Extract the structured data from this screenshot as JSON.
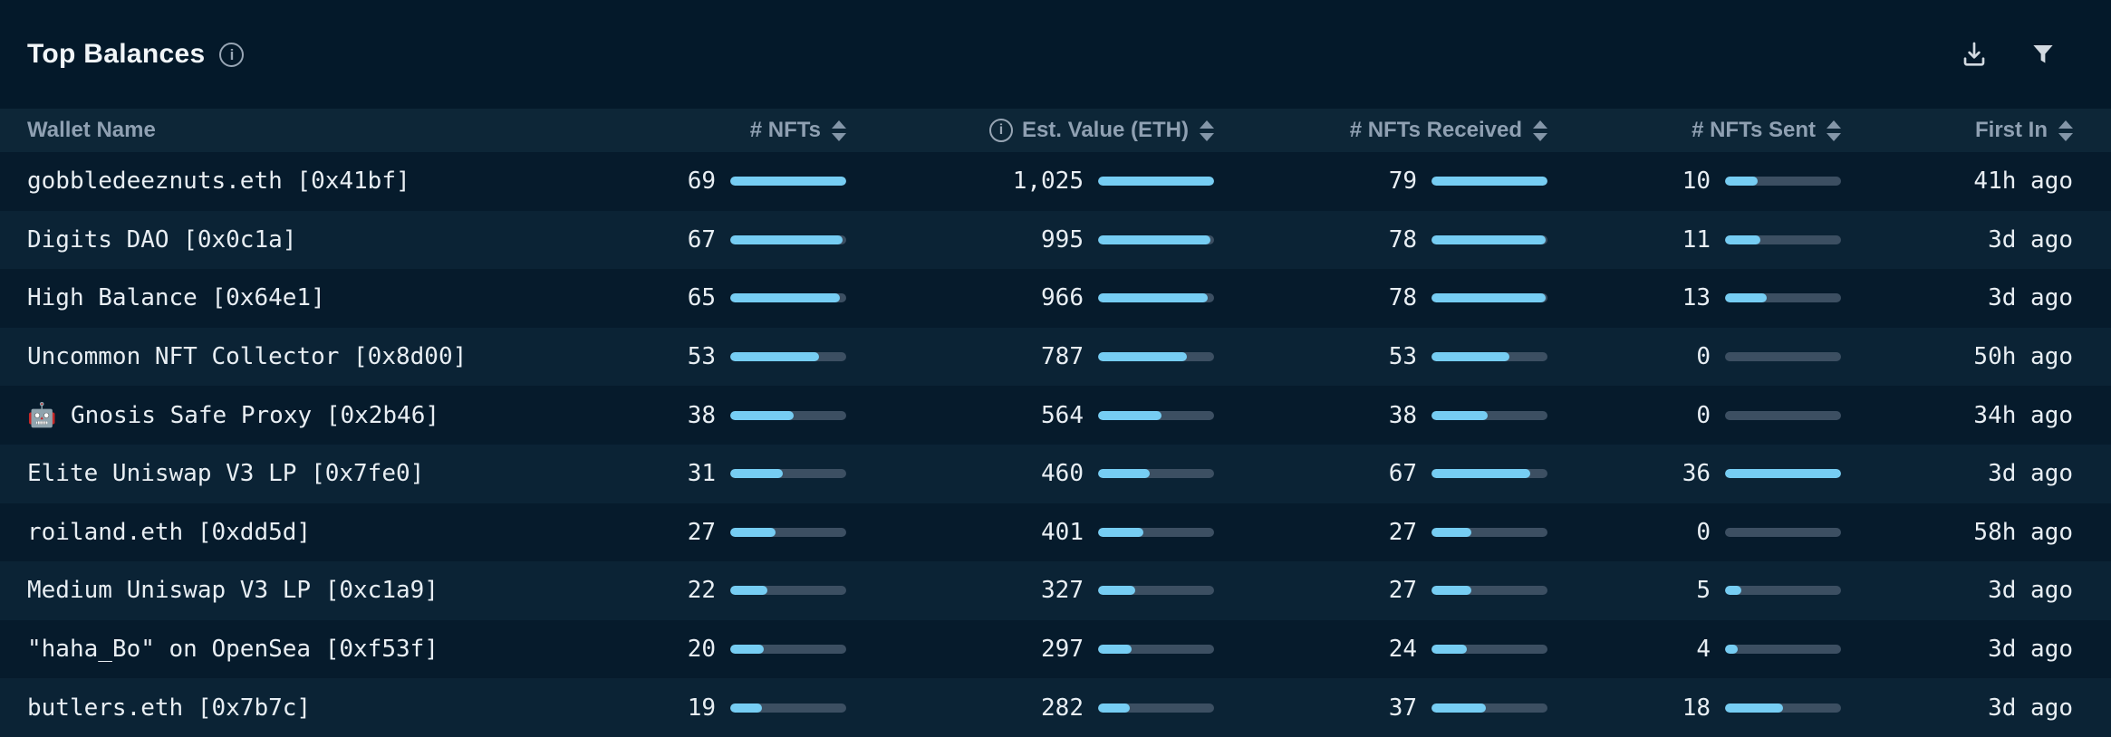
{
  "panel": {
    "title": "Top Balances"
  },
  "toolbar": {
    "icons": [
      {
        "name": "download-icon"
      },
      {
        "name": "filter-icon"
      }
    ]
  },
  "table": {
    "columns": [
      {
        "key": "name",
        "label": "Wallet Name",
        "sortable": false,
        "info_icon": false
      },
      {
        "key": "nfts",
        "label": "# NFTs",
        "sortable": true,
        "info_icon": false
      },
      {
        "key": "value",
        "label": "Est. Value (ETH)",
        "sortable": true,
        "info_icon": true
      },
      {
        "key": "received",
        "label": "# NFTs Received",
        "sortable": true,
        "info_icon": false
      },
      {
        "key": "sent",
        "label": "# NFTs Sent",
        "sortable": true,
        "info_icon": false
      },
      {
        "key": "first_in",
        "label": "First In",
        "sortable": true,
        "info_icon": false
      }
    ],
    "max": {
      "nfts": 69,
      "value": 1025,
      "received": 79,
      "sent": 36
    },
    "rows": [
      {
        "name": "gobbledeeznuts.eth [0x41bf]",
        "nfts": 69,
        "value": 1025,
        "received": 79,
        "sent": 10,
        "first_in": "41h ago"
      },
      {
        "name": "Digits DAO [0x0c1a]",
        "nfts": 67,
        "value": 995,
        "received": 78,
        "sent": 11,
        "first_in": "3d ago"
      },
      {
        "name": "High Balance [0x64e1]",
        "nfts": 65,
        "value": 966,
        "received": 78,
        "sent": 13,
        "first_in": "3d ago"
      },
      {
        "name": "Uncommon NFT Collector [0x8d00]",
        "nfts": 53,
        "value": 787,
        "received": 53,
        "sent": 0,
        "first_in": "50h ago"
      },
      {
        "name": "🤖 Gnosis Safe Proxy [0x2b46]",
        "nfts": 38,
        "value": 564,
        "received": 38,
        "sent": 0,
        "first_in": "34h ago"
      },
      {
        "name": "Elite Uniswap V3 LP [0x7fe0]",
        "nfts": 31,
        "value": 460,
        "received": 67,
        "sent": 36,
        "first_in": "3d ago"
      },
      {
        "name": "roiland.eth [0xdd5d]",
        "nfts": 27,
        "value": 401,
        "received": 27,
        "sent": 0,
        "first_in": "58h ago"
      },
      {
        "name": "Medium Uniswap V3 LP [0xc1a9]",
        "nfts": 22,
        "value": 327,
        "received": 27,
        "sent": 5,
        "first_in": "3d ago"
      },
      {
        "name": "\"haha_Bo\" on OpenSea [0xf53f]",
        "nfts": 20,
        "value": 297,
        "received": 24,
        "sent": 4,
        "first_in": "3d ago"
      },
      {
        "name": "butlers.eth [0x7b7c]",
        "nfts": 19,
        "value": 282,
        "received": 37,
        "sent": 18,
        "first_in": "3d ago"
      }
    ]
  },
  "theme": {
    "page_bg": "#04192A",
    "header_bg": "#0D2637",
    "row_odd": "#061B2C",
    "row_even": "#0B2335",
    "bar_fill": "#76CDF3",
    "bar_track": "#3C4F62",
    "text_primary": "#E8EEF3",
    "text_header": "#8FA0B2",
    "accent_icon": "#D3DAE1"
  }
}
